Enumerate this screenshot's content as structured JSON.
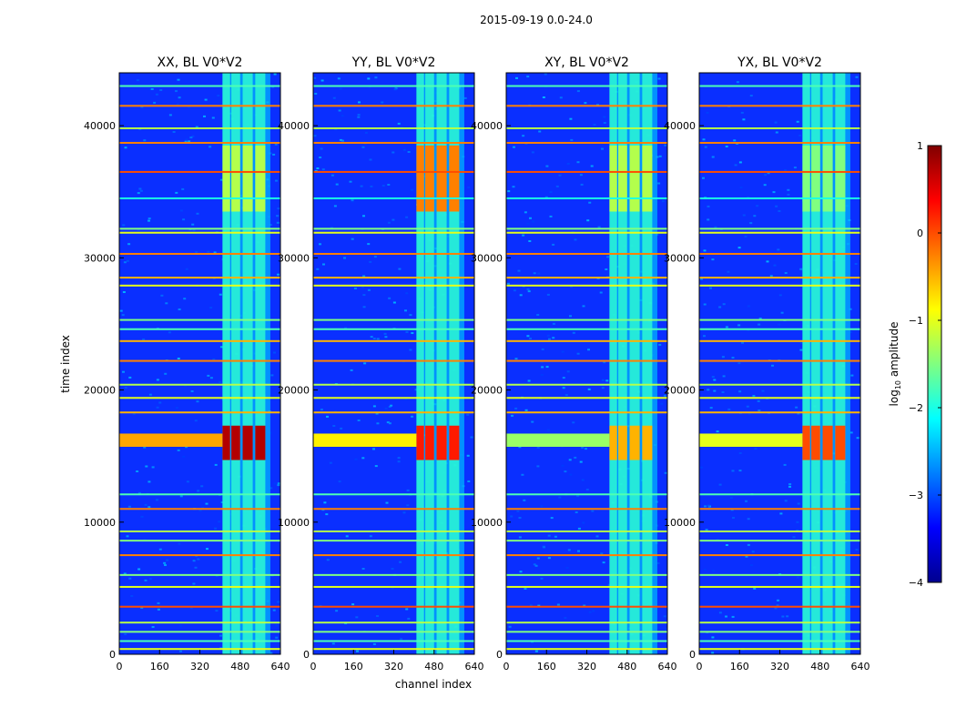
{
  "chart_data": {
    "type": "heatmap",
    "title": "2015-09-19 0.0-24.0",
    "xlabel": "channel index",
    "ylabel": "time index",
    "xlim": [
      0,
      640
    ],
    "ylim": [
      0,
      44000
    ],
    "xticks": [
      0,
      160,
      320,
      480,
      640
    ],
    "yticks": [
      0,
      10000,
      20000,
      30000,
      40000
    ],
    "colormap": "jet",
    "colorbar": {
      "label": "log10 amplitude",
      "label_base": "log",
      "label_sub": "10",
      "label_rest": " amplitude",
      "range": [
        -4,
        1
      ],
      "ticks": [
        1,
        0,
        -1,
        -2,
        -3,
        -4
      ],
      "tick_labels": [
        "1",
        "0",
        "−1",
        "−2",
        "−3",
        "−4"
      ]
    },
    "panels": [
      {
        "title": "XX, BL V0*V2",
        "band_16000_level": 0.95,
        "band_36000_level": 0.55
      },
      {
        "title": "YY, BL V0*V2",
        "band_16000_level": 0.85,
        "band_36000_level": 0.75
      },
      {
        "title": "XY, BL V0*V2",
        "band_16000_level": 0.7,
        "band_36000_level": 0.55
      },
      {
        "title": "YX, BL V0*V2",
        "band_16000_level": 0.8,
        "band_36000_level": 0.5
      }
    ],
    "active_channel_range": [
      410,
      600
    ],
    "rfi_channel_blocks": [
      [
        410,
        440
      ],
      [
        445,
        480
      ],
      [
        490,
        530
      ],
      [
        540,
        580
      ]
    ],
    "flagged_time_rows": [
      {
        "t": 43000,
        "level": 0.45
      },
      {
        "t": 41500,
        "level": 0.75
      },
      {
        "t": 39800,
        "level": 0.55
      },
      {
        "t": 38700,
        "level": 0.75
      },
      {
        "t": 36500,
        "level": 0.8
      },
      {
        "t": 34500,
        "level": 0.4
      },
      {
        "t": 32200,
        "level": 0.5
      },
      {
        "t": 31900,
        "level": 0.6
      },
      {
        "t": 30300,
        "level": 0.75
      },
      {
        "t": 28500,
        "level": 0.7
      },
      {
        "t": 27900,
        "level": 0.6
      },
      {
        "t": 25300,
        "level": 0.5
      },
      {
        "t": 24600,
        "level": 0.45
      },
      {
        "t": 23700,
        "level": 0.7
      },
      {
        "t": 22200,
        "level": 0.75
      },
      {
        "t": 20400,
        "level": 0.55
      },
      {
        "t": 19400,
        "level": 0.6
      },
      {
        "t": 18300,
        "level": 0.7
      },
      {
        "t": 12100,
        "level": 0.45
      },
      {
        "t": 11000,
        "level": 0.75
      },
      {
        "t": 9300,
        "level": 0.55
      },
      {
        "t": 8600,
        "level": 0.5
      },
      {
        "t": 7500,
        "level": 0.75
      },
      {
        "t": 6000,
        "level": 0.5
      },
      {
        "t": 5100,
        "level": 0.6
      },
      {
        "t": 3600,
        "level": 0.8
      },
      {
        "t": 2400,
        "level": 0.55
      },
      {
        "t": 1700,
        "level": 0.5
      },
      {
        "t": 1000,
        "level": 0.45
      },
      {
        "t": 400,
        "level": 0.6
      }
    ]
  }
}
